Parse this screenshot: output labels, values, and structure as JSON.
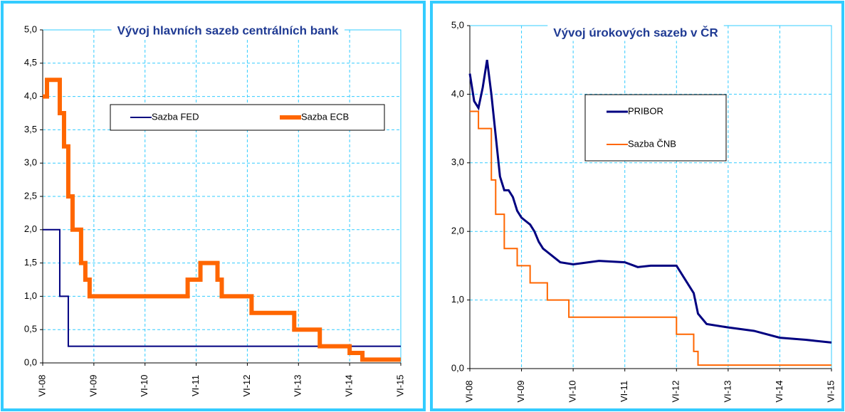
{
  "chart_data": [
    {
      "type": "line",
      "title": "Vývoj hlavních sazeb centrálních bank",
      "xlim": [
        "2008-06",
        "2015-06"
      ],
      "xticks": [
        {
          "value": "2008-06",
          "label": "VI-08"
        },
        {
          "value": "2009-06",
          "label": "VI-09"
        },
        {
          "value": "2010-06",
          "label": "VI-10"
        },
        {
          "value": "2011-06",
          "label": "VI-11"
        },
        {
          "value": "2012-06",
          "label": "VI-12"
        },
        {
          "value": "2013-06",
          "label": "VI-13"
        },
        {
          "value": "2014-06",
          "label": "VI-14"
        },
        {
          "value": "2015-06",
          "label": "VI-15"
        }
      ],
      "ylim": [
        0,
        5
      ],
      "yticks": [
        {
          "value": 0,
          "label": "0,0"
        },
        {
          "value": 0.5,
          "label": "0,5"
        },
        {
          "value": 1,
          "label": "1,0"
        },
        {
          "value": 1.5,
          "label": "1,5"
        },
        {
          "value": 2,
          "label": "2,0"
        },
        {
          "value": 2.5,
          "label": "2,5"
        },
        {
          "value": 3,
          "label": "3,0"
        },
        {
          "value": 3.5,
          "label": "3,5"
        },
        {
          "value": 4,
          "label": "4,0"
        },
        {
          "value": 4.5,
          "label": "4,5"
        },
        {
          "value": 5,
          "label": "5,0"
        }
      ],
      "grid": true,
      "series": [
        {
          "name": "Sazba FED",
          "color": "#000080",
          "step": true,
          "x": [
            "2008-06",
            "2008-10",
            "2008-12",
            "2015-06"
          ],
          "values": [
            2.0,
            1.0,
            0.25,
            0.25
          ]
        },
        {
          "name": "Sazba ECB",
          "color": "#ff6600",
          "step": true,
          "x": [
            "2008-06",
            "2008-07",
            "2008-10",
            "2008-11",
            "2008-12",
            "2009-01",
            "2009-03",
            "2009-04",
            "2009-05",
            "2011-04",
            "2011-07",
            "2011-11",
            "2011-12",
            "2012-07",
            "2013-05",
            "2013-11",
            "2014-06",
            "2014-09",
            "2015-06"
          ],
          "values": [
            4.0,
            4.25,
            3.75,
            3.25,
            2.5,
            2.0,
            1.5,
            1.25,
            1.0,
            1.25,
            1.5,
            1.25,
            1.0,
            0.75,
            0.5,
            0.25,
            0.15,
            0.05,
            0.05
          ]
        }
      ]
    },
    {
      "type": "line",
      "title": "Vývoj úrokových sazeb v ČR",
      "xlim": [
        "2008-06",
        "2015-06"
      ],
      "xticks": [
        {
          "value": "2008-06",
          "label": "VI-08"
        },
        {
          "value": "2009-06",
          "label": "VI-09"
        },
        {
          "value": "2010-06",
          "label": "VI-10"
        },
        {
          "value": "2011-06",
          "label": "VI-11"
        },
        {
          "value": "2012-06",
          "label": "VI-12"
        },
        {
          "value": "2013-06",
          "label": "VI-13"
        },
        {
          "value": "2014-06",
          "label": "VI-14"
        },
        {
          "value": "2015-06",
          "label": "VI-15"
        }
      ],
      "ylim": [
        0,
        5
      ],
      "yticks": [
        {
          "value": 0,
          "label": "0,0"
        },
        {
          "value": 1,
          "label": "1,0"
        },
        {
          "value": 2,
          "label": "2,0"
        },
        {
          "value": 3,
          "label": "3,0"
        },
        {
          "value": 4,
          "label": "4,0"
        },
        {
          "value": 5,
          "label": "5,0"
        }
      ],
      "grid": true,
      "series": [
        {
          "name": "PRIBOR",
          "color": "#000080",
          "step": false,
          "x": [
            "2008-06",
            "2008-07",
            "2008-08",
            "2008-09",
            "2008-10",
            "2008-11",
            "2008-12",
            "2009-01",
            "2009-02",
            "2009-03",
            "2009-04",
            "2009-05",
            "2009-06",
            "2009-07",
            "2009-08",
            "2009-09",
            "2009-10",
            "2009-11",
            "2009-12",
            "2010-01",
            "2010-03",
            "2010-06",
            "2010-12",
            "2011-06",
            "2011-09",
            "2011-12",
            "2012-06",
            "2012-08",
            "2012-10",
            "2012-11",
            "2013-01",
            "2013-06",
            "2013-12",
            "2014-06",
            "2014-12",
            "2015-06"
          ],
          "values": [
            4.3,
            3.9,
            3.8,
            4.1,
            4.5,
            4.0,
            3.4,
            2.8,
            2.6,
            2.6,
            2.5,
            2.3,
            2.2,
            2.15,
            2.1,
            2.0,
            1.85,
            1.75,
            1.7,
            1.65,
            1.55,
            1.52,
            1.57,
            1.55,
            1.48,
            1.5,
            1.5,
            1.3,
            1.1,
            0.8,
            0.65,
            0.6,
            0.55,
            0.45,
            0.42,
            0.38
          ]
        },
        {
          "name": "Sazba ČNB",
          "color": "#ff6600",
          "step": true,
          "x": [
            "2008-06",
            "2008-08",
            "2008-11",
            "2008-12",
            "2009-02",
            "2009-05",
            "2009-08",
            "2009-12",
            "2010-05",
            "2012-06",
            "2012-10",
            "2012-11",
            "2015-06"
          ],
          "values": [
            3.75,
            3.5,
            2.75,
            2.25,
            1.75,
            1.5,
            1.25,
            1.0,
            0.75,
            0.5,
            0.25,
            0.05,
            0.05
          ]
        }
      ]
    }
  ]
}
